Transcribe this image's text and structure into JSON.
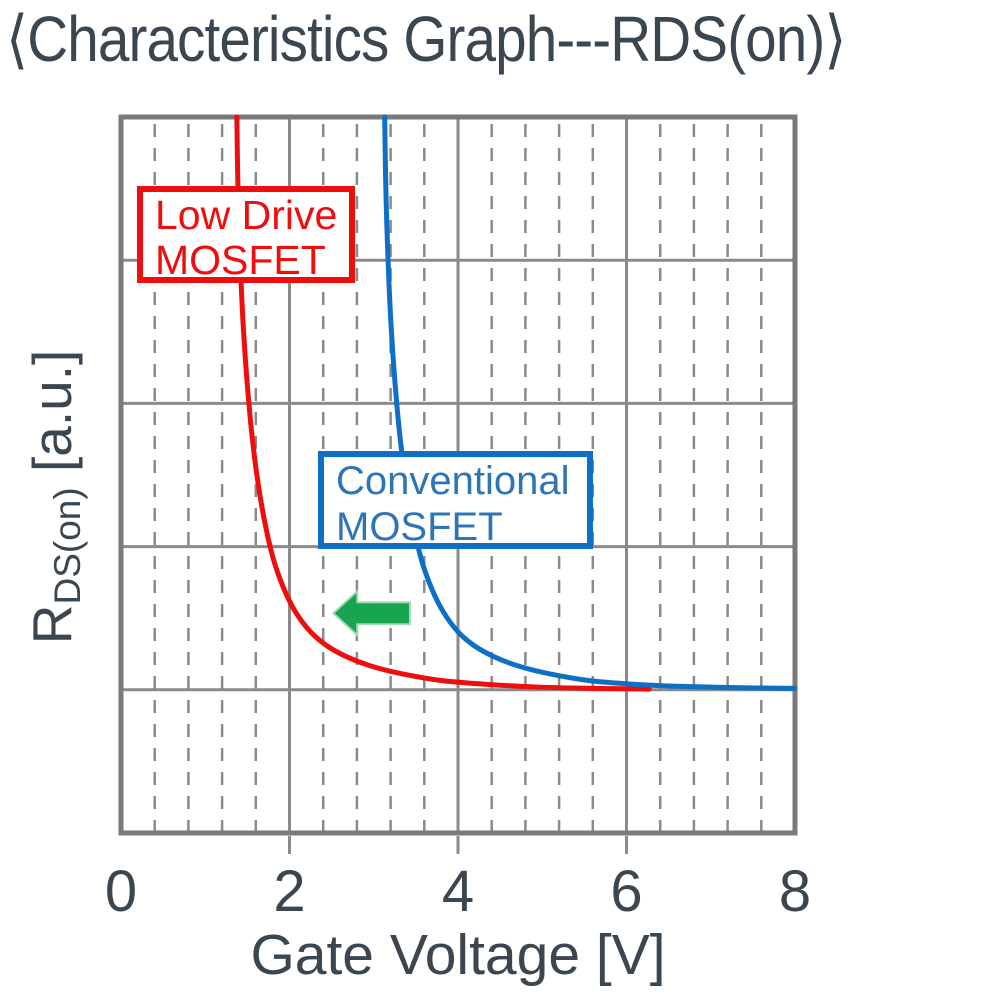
{
  "title": "⟨Characteristics Graph---RDS(on)⟩",
  "axis": {
    "xlabel": "Gate Voltage [V]",
    "y_main": "R",
    "y_sub": "DS(on)",
    "y_unit": " [a.u.]"
  },
  "labels": {
    "low_drive_line1": "Low Drive",
    "low_drive_line2": "MOSFET",
    "conventional_line1": "Conventional",
    "conventional_line2": "MOSFET"
  },
  "colors": {
    "text_dark": "#3C4650",
    "grid_gray": "#8A8A8A",
    "border_gray": "#7A7A7A",
    "red_series": "#EE0E0E",
    "blue_series": "#0D6FC5",
    "blue_label_text": "#2E75B6",
    "arrow_green": "#18A450",
    "arrow_green_edge": "#A5DBB6"
  },
  "chart_data": {
    "type": "line",
    "title": "⟨Characteristics Graph---RDS(on)⟩",
    "xlabel": "Gate Voltage [V]",
    "ylabel": "R_DS(on) [a.u.]",
    "x_range": [
      0,
      8
    ],
    "x_ticks": [
      0,
      2,
      4,
      6,
      8
    ],
    "x_major_step": 2,
    "x_minor_step": 0.4,
    "y_range": [
      0,
      1
    ],
    "y_divisions": 5,
    "y_tick_labels": [],
    "grid": "solid majors both axes; dashed vertical minors only; y axis unlabeled (arbitrary units)",
    "legend_position": "in-plot callout boxes",
    "series": [
      {
        "name": "Low Drive MOSFET",
        "color": "#EE0E0E",
        "threshold_voltage_approx": 1.3,
        "points": [
          [
            1.375,
            1.0
          ],
          [
            1.385,
            0.92
          ],
          [
            1.4,
            0.85
          ],
          [
            1.425,
            0.77
          ],
          [
            1.455,
            0.7
          ],
          [
            1.5,
            0.625
          ],
          [
            1.555,
            0.555
          ],
          [
            1.625,
            0.49
          ],
          [
            1.71,
            0.432
          ],
          [
            1.81,
            0.382
          ],
          [
            1.93,
            0.342
          ],
          [
            2.07,
            0.309
          ],
          [
            2.25,
            0.281
          ],
          [
            2.45,
            0.261
          ],
          [
            2.7,
            0.245
          ],
          [
            3.0,
            0.232
          ],
          [
            3.35,
            0.222
          ],
          [
            3.8,
            0.213
          ],
          [
            4.3,
            0.208
          ],
          [
            4.9,
            0.204
          ],
          [
            5.6,
            0.202
          ],
          [
            6.27,
            0.201
          ]
        ]
      },
      {
        "name": "Conventional MOSFET",
        "color": "#0D6FC5",
        "threshold_voltage_approx": 3.0,
        "points": [
          [
            3.13,
            1.0
          ],
          [
            3.14,
            0.92
          ],
          [
            3.155,
            0.85
          ],
          [
            3.18,
            0.77
          ],
          [
            3.21,
            0.7
          ],
          [
            3.255,
            0.625
          ],
          [
            3.31,
            0.555
          ],
          [
            3.38,
            0.49
          ],
          [
            3.465,
            0.432
          ],
          [
            3.565,
            0.382
          ],
          [
            3.685,
            0.342
          ],
          [
            3.825,
            0.309
          ],
          [
            4.0,
            0.281
          ],
          [
            4.2,
            0.261
          ],
          [
            4.45,
            0.245
          ],
          [
            4.75,
            0.232
          ],
          [
            5.1,
            0.222
          ],
          [
            5.55,
            0.213
          ],
          [
            6.05,
            0.208
          ],
          [
            6.6,
            0.205
          ],
          [
            7.3,
            0.203
          ],
          [
            8.0,
            0.202
          ]
        ]
      }
    ],
    "annotations": {
      "shift_arrow": {
        "meaning": "RDS(on) curve shifts toward lower gate voltage",
        "direction": "left",
        "tail_v": 3.43,
        "tip_v": 2.52,
        "r": 0.307,
        "color": "#18A450"
      },
      "callouts": [
        {
          "text": "Low Drive MOSFET",
          "series": "Low Drive MOSFET",
          "color": "#EE0E0E"
        },
        {
          "text": "Conventional MOSFET",
          "series": "Conventional MOSFET",
          "color": "#0D6FC5"
        }
      ]
    }
  }
}
